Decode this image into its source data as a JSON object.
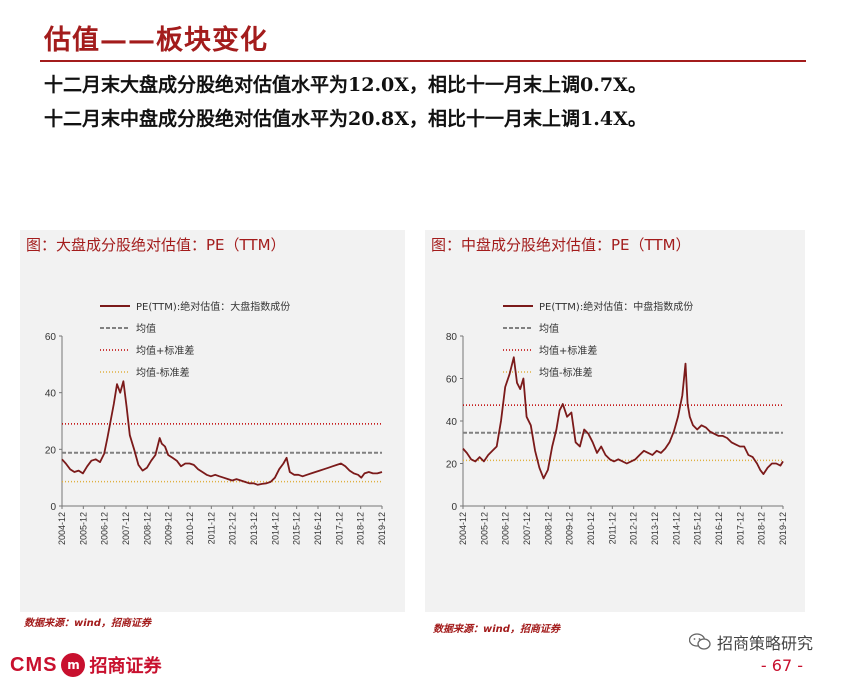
{
  "page": {
    "title": "估值——板块变化",
    "summary": [
      "十二月末大盘成分股绝对估值水平为12.0X，相比十一月末上调0.7X。",
      "十二月末中盘成分股绝对估值水平为20.8X，相比十一月末上调1.4X。"
    ],
    "footer_logo": {
      "cms": "CMS",
      "badge": "m",
      "name": "招商证券"
    },
    "wechat": "招商策略研究",
    "page_number": "- 67 -"
  },
  "colors": {
    "series": "#7b1a1a",
    "mean": "#808080",
    "plus_sd": "#c00000",
    "minus_sd": "#e0b040",
    "accent": "#a31c1c"
  },
  "chart_data": [
    {
      "type": "line",
      "title": "图：大盘成分股绝对估值：PE（TTM）",
      "source": "数据来源：wind，招商证券",
      "legend": [
        "PE(TTM):绝对估值：大盘指数成份",
        "均值",
        "均值+标准差",
        "均值-标准差"
      ],
      "x_ticks": [
        "2004-12",
        "2005-12",
        "2006-12",
        "2007-12",
        "2008-12",
        "2009-12",
        "2010-12",
        "2011-12",
        "2012-12",
        "2013-12",
        "2014-12",
        "2015-12",
        "2016-12",
        "2017-12",
        "2018-12",
        "2019-12"
      ],
      "y_ticks": [
        "0",
        "20",
        "40",
        "60"
      ],
      "ylim": [
        0,
        60
      ],
      "mean": 18.8,
      "mean_plus_sd": 29.0,
      "mean_minus_sd": 8.6,
      "series": [
        {
          "name": "PE(TTM):绝对估值：大盘指数成份",
          "x": [
            2004.92,
            2005.1,
            2005.3,
            2005.5,
            2005.7,
            2005.9,
            2006.1,
            2006.3,
            2006.5,
            2006.7,
            2006.9,
            2007.05,
            2007.2,
            2007.35,
            2007.5,
            2007.65,
            2007.8,
            2007.95,
            2008.1,
            2008.3,
            2008.5,
            2008.7,
            2008.9,
            2009.1,
            2009.3,
            2009.5,
            2009.6,
            2009.75,
            2009.9,
            2010.1,
            2010.3,
            2010.5,
            2010.7,
            2010.9,
            2011.1,
            2011.3,
            2011.5,
            2011.7,
            2011.9,
            2012.1,
            2012.3,
            2012.5,
            2012.7,
            2012.9,
            2013.1,
            2013.3,
            2013.5,
            2013.7,
            2013.9,
            2014.1,
            2014.3,
            2014.5,
            2014.7,
            2014.9,
            2015.1,
            2015.3,
            2015.45,
            2015.6,
            2015.8,
            2016.0,
            2016.2,
            2016.4,
            2016.6,
            2016.8,
            2017.0,
            2017.2,
            2017.4,
            2017.6,
            2017.8,
            2018.0,
            2018.2,
            2018.4,
            2018.6,
            2018.8,
            2018.95,
            2019.1,
            2019.3,
            2019.5,
            2019.7,
            2019.92
          ],
          "values": [
            16.5,
            15,
            13,
            12,
            12.5,
            11.5,
            14,
            16,
            16.5,
            15.5,
            18.5,
            24,
            30,
            36,
            43,
            40,
            44,
            35,
            25,
            20,
            14.5,
            12.5,
            13.5,
            16,
            18,
            24,
            22,
            21,
            18,
            17,
            16,
            14,
            15,
            15,
            14.5,
            13,
            12,
            11,
            10.5,
            11,
            10.5,
            10,
            9.5,
            9,
            9.5,
            9,
            8.5,
            8,
            8,
            7.5,
            7.8,
            8,
            8.5,
            10,
            13,
            15,
            17,
            12,
            11,
            11,
            10.5,
            11,
            11.5,
            12,
            12.5,
            13,
            13.5,
            14,
            14.5,
            15,
            14,
            12.5,
            11.5,
            11,
            10,
            11.5,
            12,
            11.5,
            11.5,
            12
          ]
        }
      ]
    },
    {
      "type": "line",
      "title": "图：中盘成分股绝对估值：PE（TTM）",
      "source": "数据来源：wind，招商证券",
      "legend": [
        "PE(TTM):绝对估值：中盘指数成份",
        "均值",
        "均值+标准差",
        "均值-标准差"
      ],
      "x_ticks": [
        "2004-12",
        "2005-12",
        "2006-12",
        "2007-12",
        "2008-12",
        "2009-12",
        "2010-12",
        "2011-12",
        "2012-12",
        "2013-12",
        "2014-12",
        "2015-12",
        "2016-12",
        "2017-12",
        "2018-12",
        "2019-12"
      ],
      "y_ticks": [
        "0",
        "20",
        "40",
        "60",
        "80"
      ],
      "ylim": [
        0,
        80
      ],
      "mean": 34.5,
      "mean_plus_sd": 47.5,
      "mean_minus_sd": 21.5,
      "series": [
        {
          "name": "PE(TTM):绝对估值：中盘指数成份",
          "x": [
            2004.92,
            2005.1,
            2005.3,
            2005.5,
            2005.7,
            2005.9,
            2006.1,
            2006.3,
            2006.5,
            2006.7,
            2006.9,
            2007.1,
            2007.3,
            2007.45,
            2007.6,
            2007.75,
            2007.9,
            2008.1,
            2008.3,
            2008.5,
            2008.7,
            2008.9,
            2009.1,
            2009.3,
            2009.45,
            2009.6,
            2009.8,
            2010.0,
            2010.2,
            2010.4,
            2010.6,
            2010.8,
            2011.0,
            2011.2,
            2011.4,
            2011.6,
            2011.8,
            2012.0,
            2012.2,
            2012.4,
            2012.6,
            2012.8,
            2013.0,
            2013.2,
            2013.4,
            2013.6,
            2013.8,
            2014.0,
            2014.2,
            2014.4,
            2014.6,
            2014.8,
            2015.0,
            2015.2,
            2015.35,
            2015.45,
            2015.55,
            2015.7,
            2015.9,
            2016.1,
            2016.3,
            2016.5,
            2016.7,
            2016.9,
            2017.1,
            2017.3,
            2017.5,
            2017.7,
            2017.9,
            2018.1,
            2018.3,
            2018.5,
            2018.7,
            2018.85,
            2019.0,
            2019.2,
            2019.4,
            2019.6,
            2019.8,
            2019.92
          ],
          "values": [
            27,
            25,
            22,
            21,
            23,
            21,
            24,
            26,
            28,
            40,
            56,
            62,
            70,
            58,
            55,
            60,
            42,
            38,
            26,
            18,
            13,
            17,
            28,
            36,
            45,
            48,
            42,
            44,
            30,
            28,
            36,
            34,
            30,
            25,
            28,
            24,
            22,
            21,
            22,
            21,
            20,
            21,
            22,
            24,
            26,
            25,
            24,
            26,
            25,
            27,
            30,
            35,
            42,
            52,
            67,
            48,
            42,
            38,
            36,
            38,
            37,
            35,
            34,
            33,
            33,
            32,
            30,
            29,
            28,
            28,
            24,
            23,
            20,
            17,
            15,
            18,
            20,
            20,
            19,
            21
          ]
        }
      ]
    }
  ]
}
